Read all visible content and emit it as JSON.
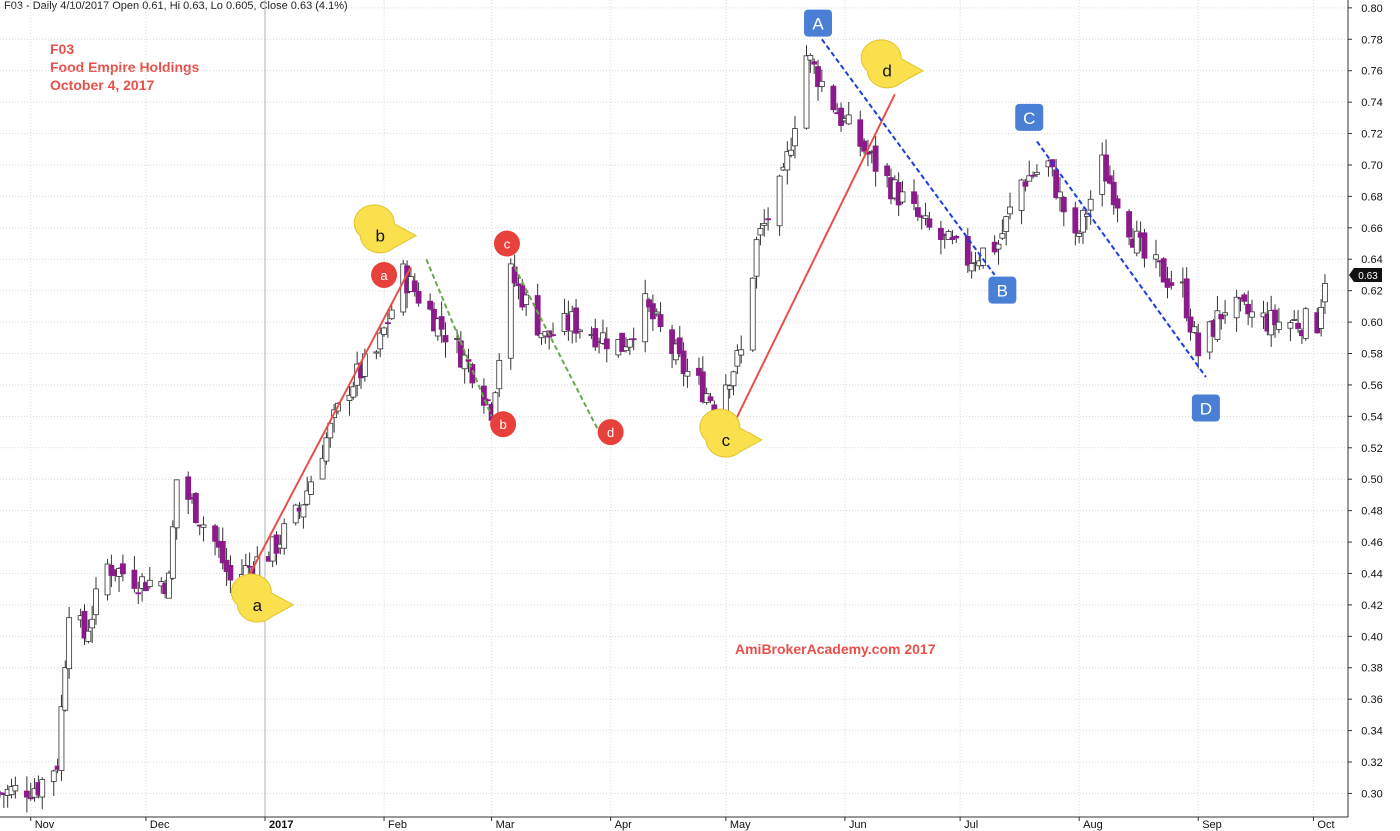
{
  "header": {
    "info": "F03 - Daily 4/10/2017 Open 0.61, Hi 0.63, Lo 0.605, Close 0.63 (4.1%)"
  },
  "title": {
    "ticker": "F03",
    "company": "Food Empire Holdings",
    "date": "October 4, 2017"
  },
  "watermark": "AmiBrokerAcademy.com  2017",
  "last_price_label": "0.63",
  "colors": {
    "up_body": "#ffffff",
    "down_body": "#8b1a8b",
    "wick": "#333333",
    "title_red": "#e8504a",
    "trend_red": "#e8504a",
    "trend_green": "#6aa84f",
    "trend_blue": "#1a3ee0",
    "callout_yellow": "#f9e04c",
    "circle_red": "#e8413c",
    "box_blue": "#4a7fd6"
  },
  "chart_data": {
    "type": "candlestick",
    "title": "",
    "xlabel": "",
    "ylabel": "",
    "ylim": [
      0.285,
      0.805
    ],
    "y_ticks": [
      "0.30",
      "0.32",
      "0.34",
      "0.36",
      "0.38",
      "0.40",
      "0.42",
      "0.44",
      "0.46",
      "0.48",
      "0.50",
      "0.52",
      "0.54",
      "0.56",
      "0.58",
      "0.60",
      "0.62",
      "0.64",
      "0.66",
      "0.68",
      "0.70",
      "0.72",
      "0.74",
      "0.76",
      "0.78",
      "0.80"
    ],
    "x_ticks": [
      "Nov",
      "Dec",
      "2017",
      "Feb",
      "Mar",
      "Apr",
      "May",
      "Jun",
      "Jul",
      "Aug",
      "Sep",
      "Oct"
    ],
    "x_range": [
      "2016-10-24",
      "2017-10-10"
    ],
    "grid": true,
    "price_path": [
      [
        "2016-10-24",
        0.3
      ],
      [
        "2016-11-03",
        0.305
      ],
      [
        "2016-11-08",
        0.32
      ],
      [
        "2016-11-11",
        0.42
      ],
      [
        "2016-11-15",
        0.4
      ],
      [
        "2016-11-21",
        0.445
      ],
      [
        "2016-11-30",
        0.435
      ],
      [
        "2016-12-07",
        0.435
      ],
      [
        "2016-12-09",
        0.5
      ],
      [
        "2016-12-19",
        0.46
      ],
      [
        "2016-12-23",
        0.435
      ],
      [
        "2017-01-03",
        0.455
      ],
      [
        "2017-01-10",
        0.48
      ],
      [
        "2017-01-16",
        0.52
      ],
      [
        "2017-01-23",
        0.56
      ],
      [
        "2017-01-30",
        0.58
      ],
      [
        "2017-02-06",
        0.63
      ],
      [
        "2017-02-15",
        0.6
      ],
      [
        "2017-02-24",
        0.57
      ],
      [
        "2017-03-01",
        0.545
      ],
      [
        "2017-03-06",
        0.63
      ],
      [
        "2017-03-15",
        0.59
      ],
      [
        "2017-03-22",
        0.6
      ],
      [
        "2017-04-04",
        0.585
      ],
      [
        "2017-04-10",
        0.61
      ],
      [
        "2017-04-20",
        0.57
      ],
      [
        "2017-04-28",
        0.55
      ],
      [
        "2017-05-05",
        0.58
      ],
      [
        "2017-05-09",
        0.65
      ],
      [
        "2017-05-16",
        0.69
      ],
      [
        "2017-05-22",
        0.77
      ],
      [
        "2017-05-31",
        0.73
      ],
      [
        "2017-06-12",
        0.69
      ],
      [
        "2017-06-22",
        0.66
      ],
      [
        "2017-07-03",
        0.64
      ],
      [
        "2017-07-11",
        0.65
      ],
      [
        "2017-07-17",
        0.69
      ],
      [
        "2017-07-24",
        0.7
      ],
      [
        "2017-07-31",
        0.65
      ],
      [
        "2017-08-07",
        0.7
      ],
      [
        "2017-08-18",
        0.64
      ],
      [
        "2017-08-28",
        0.62
      ],
      [
        "2017-09-01",
        0.58
      ],
      [
        "2017-09-08",
        0.61
      ],
      [
        "2017-09-20",
        0.6
      ],
      [
        "2017-10-02",
        0.6
      ],
      [
        "2017-10-04",
        0.63
      ]
    ],
    "trendlines": [
      {
        "color": "red",
        "style": "solid",
        "from": [
          "2016-12-26",
          0.43
        ],
        "to": [
          "2017-02-08",
          0.635
        ]
      },
      {
        "color": "green",
        "style": "dashed",
        "from": [
          "2017-02-12",
          0.64
        ],
        "to": [
          "2017-03-01",
          0.54
        ]
      },
      {
        "color": "green",
        "style": "dashed",
        "from": [
          "2017-03-07",
          0.635
        ],
        "to": [
          "2017-03-29",
          0.53
        ]
      },
      {
        "color": "red",
        "style": "solid",
        "from": [
          "2017-05-03",
          0.535
        ],
        "to": [
          "2017-06-14",
          0.745
        ]
      },
      {
        "color": "blue",
        "style": "dashed",
        "from": [
          "2017-05-26",
          0.78
        ],
        "to": [
          "2017-07-10",
          0.63
        ]
      },
      {
        "color": "blue",
        "style": "dashed",
        "from": [
          "2017-07-21",
          0.715
        ],
        "to": [
          "2017-09-03",
          0.565
        ]
      }
    ],
    "annotations": [
      {
        "text": "a",
        "shape": "yellow-callout",
        "at": [
          "2016-12-30",
          0.42
        ]
      },
      {
        "text": "b",
        "shape": "yellow-callout",
        "at": [
          "2017-01-31",
          0.655
        ]
      },
      {
        "text": "c",
        "shape": "yellow-callout",
        "at": [
          "2017-05-01",
          0.525
        ]
      },
      {
        "text": "d",
        "shape": "yellow-callout",
        "at": [
          "2017-06-12",
          0.76
        ]
      },
      {
        "text": "a",
        "shape": "red-circle",
        "at": [
          "2017-02-01",
          0.63
        ]
      },
      {
        "text": "b",
        "shape": "red-circle",
        "at": [
          "2017-03-04",
          0.535
        ]
      },
      {
        "text": "c",
        "shape": "red-circle",
        "at": [
          "2017-03-05",
          0.65
        ]
      },
      {
        "text": "d",
        "shape": "red-circle",
        "at": [
          "2017-04-01",
          0.53
        ]
      },
      {
        "text": "A",
        "shape": "blue-box",
        "at": [
          "2017-05-25",
          0.79
        ]
      },
      {
        "text": "B",
        "shape": "blue-box",
        "at": [
          "2017-07-12",
          0.62
        ]
      },
      {
        "text": "C",
        "shape": "blue-box",
        "at": [
          "2017-07-19",
          0.73
        ]
      },
      {
        "text": "D",
        "shape": "blue-box",
        "at": [
          "2017-09-03",
          0.545
        ]
      }
    ]
  }
}
